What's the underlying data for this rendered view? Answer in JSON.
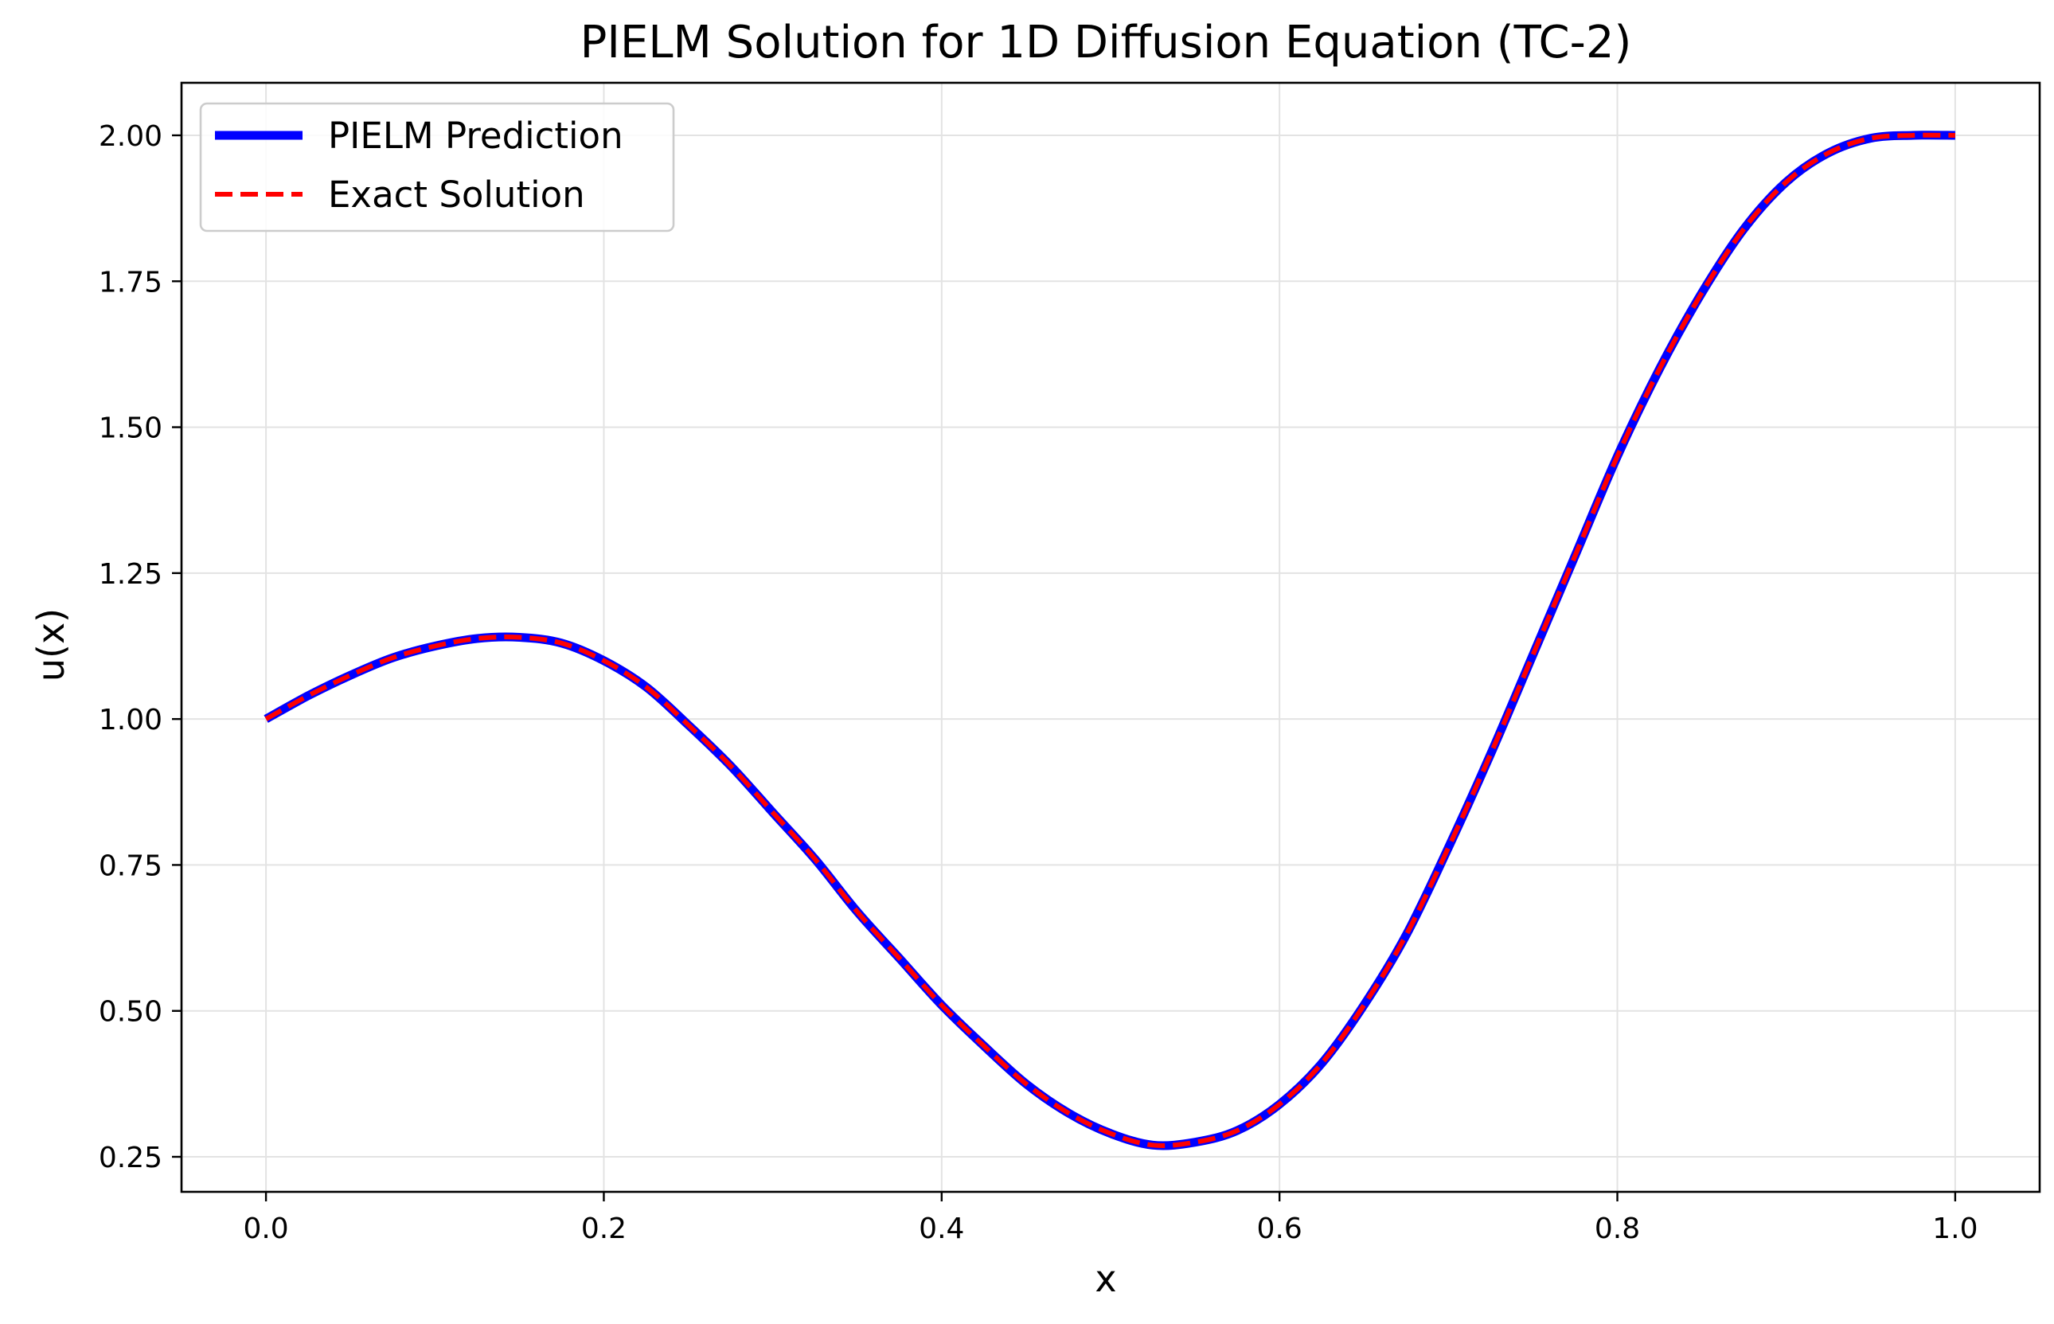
{
  "chart_data": {
    "type": "line",
    "title": "PIELM Solution for 1D Diffusion Equation (TC-2)",
    "xlabel": "x",
    "ylabel": "u(x)",
    "xlim": [
      -0.05,
      1.05
    ],
    "ylim": [
      0.19,
      2.09
    ],
    "xticks": [
      0.0,
      0.2,
      0.4,
      0.6,
      0.8,
      1.0
    ],
    "xtick_labels": [
      "0.0",
      "0.2",
      "0.4",
      "0.6",
      "0.8",
      "1.0"
    ],
    "yticks": [
      0.25,
      0.5,
      0.75,
      1.0,
      1.25,
      1.5,
      1.75,
      2.0
    ],
    "ytick_labels": [
      "0.25",
      "0.50",
      "0.75",
      "1.00",
      "1.25",
      "1.50",
      "1.75",
      "2.00"
    ],
    "grid": true,
    "legend_position": "upper-left",
    "x": [
      0.0,
      0.025,
      0.05,
      0.075,
      0.1,
      0.125,
      0.15,
      0.175,
      0.2,
      0.225,
      0.25,
      0.275,
      0.3,
      0.325,
      0.35,
      0.375,
      0.4,
      0.425,
      0.45,
      0.475,
      0.5,
      0.525,
      0.55,
      0.575,
      0.6,
      0.625,
      0.65,
      0.675,
      0.7,
      0.725,
      0.75,
      0.775,
      0.8,
      0.825,
      0.85,
      0.875,
      0.9,
      0.925,
      0.95,
      0.975,
      1.0
    ],
    "series": [
      {
        "name": "PIELM Prediction",
        "color": "#0000ff",
        "style": "solid",
        "values": [
          1.0,
          1.04,
          1.075,
          1.105,
          1.125,
          1.138,
          1.14,
          1.13,
          1.1,
          1.055,
          0.99,
          0.92,
          0.84,
          0.76,
          0.67,
          0.59,
          0.51,
          0.44,
          0.375,
          0.325,
          0.29,
          0.27,
          0.275,
          0.295,
          0.34,
          0.41,
          0.51,
          0.63,
          0.78,
          0.94,
          1.11,
          1.28,
          1.45,
          1.6,
          1.73,
          1.84,
          1.92,
          1.97,
          1.995,
          2.0,
          2.0
        ]
      },
      {
        "name": "Exact Solution",
        "color": "#ff0000",
        "style": "dashed",
        "values": [
          1.0,
          1.04,
          1.075,
          1.105,
          1.125,
          1.138,
          1.14,
          1.13,
          1.1,
          1.055,
          0.99,
          0.92,
          0.84,
          0.76,
          0.67,
          0.59,
          0.51,
          0.44,
          0.375,
          0.325,
          0.29,
          0.27,
          0.275,
          0.295,
          0.34,
          0.41,
          0.51,
          0.63,
          0.78,
          0.94,
          1.11,
          1.28,
          1.45,
          1.6,
          1.73,
          1.84,
          1.92,
          1.97,
          1.995,
          2.0,
          2.0
        ]
      }
    ]
  }
}
